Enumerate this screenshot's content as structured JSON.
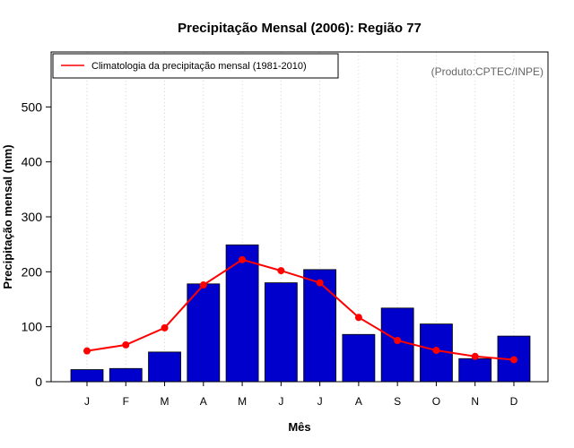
{
  "chart_data": {
    "type": "bar",
    "title": "Precipitação Mensal (2006): Região 77",
    "xlabel": "Mês",
    "ylabel": "Precipitação mensal (mm)",
    "categories": [
      "J",
      "F",
      "M",
      "A",
      "M",
      "J",
      "J",
      "A",
      "S",
      "O",
      "N",
      "D"
    ],
    "ylim": [
      0,
      600
    ],
    "yticks": [
      0,
      100,
      200,
      300,
      400,
      500
    ],
    "grid": "vertical dotted",
    "series": [
      {
        "name": "Precipitação mensal (2006)",
        "kind": "bar",
        "color": "#0000CC",
        "values": [
          22,
          24,
          54,
          178,
          249,
          180,
          204,
          86,
          134,
          105,
          42,
          83
        ]
      },
      {
        "name": "Climatologia da precipitação mensal (1981-2010)",
        "kind": "line",
        "color": "#FF0000",
        "values": [
          56,
          67,
          98,
          176,
          222,
          202,
          180,
          117,
          75,
          57,
          46,
          40
        ]
      }
    ],
    "legend": {
      "position": "top-left",
      "entries": [
        "Climatologia da precipitação mensal (1981-2010)"
      ]
    },
    "annotation": "(Produto:CPTEC/INPE)"
  }
}
